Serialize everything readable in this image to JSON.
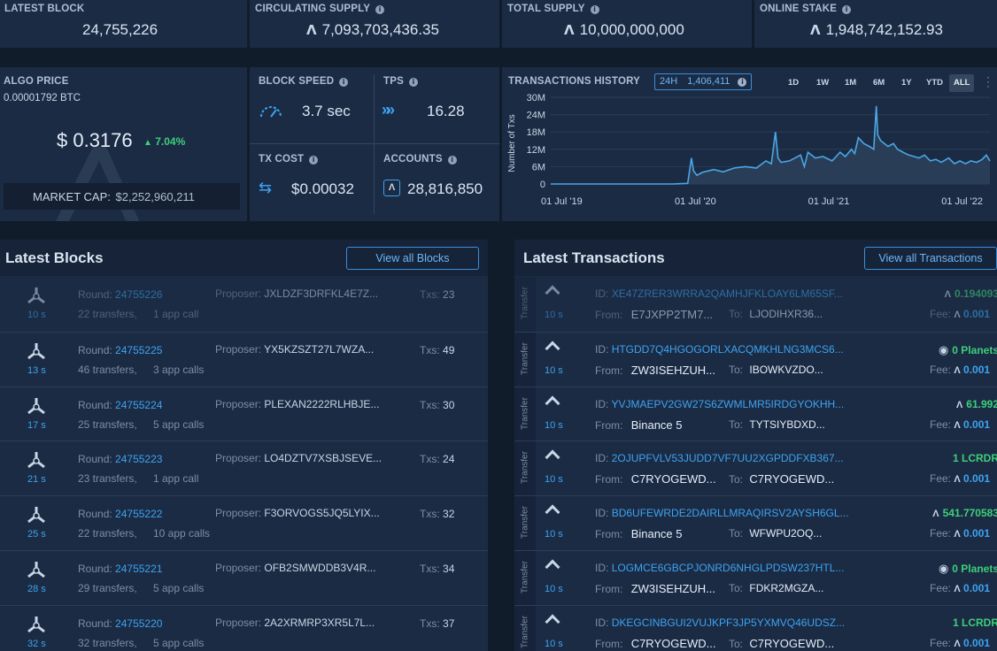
{
  "stats_top": {
    "latest_block": {
      "label": "LATEST BLOCK",
      "value": "24,755,226"
    },
    "circulating_supply": {
      "label": "CIRCULATING SUPPLY",
      "value": "7,093,703,436.35"
    },
    "total_supply": {
      "label": "TOTAL SUPPLY",
      "value": "10,000,000,000"
    },
    "online_stake": {
      "label": "ONLINE STAKE",
      "value": "1,948,742,152.93"
    }
  },
  "price": {
    "label": "ALGO PRICE",
    "btc": "0.00001792 BTC",
    "usd": "$ 0.3176",
    "change": "7.04%",
    "market_cap_label": "MARKET CAP:",
    "market_cap_value": "$2,252,960,211"
  },
  "metrics": {
    "block_speed": {
      "label": "BLOCK SPEED",
      "value": "3.7 sec"
    },
    "tps": {
      "label": "TPS",
      "value": "16.28"
    },
    "tx_cost": {
      "label": "TX COST",
      "value": "$0.00032"
    },
    "accounts": {
      "label": "ACCOUNTS",
      "value": "28,816,850"
    }
  },
  "tx_history": {
    "label": "TRANSACTIONS HISTORY",
    "badge_period": "24H",
    "badge_value": "1,406,411",
    "ranges": [
      "1D",
      "1W",
      "1M",
      "6M",
      "1Y",
      "YTD",
      "ALL"
    ],
    "active_range": "ALL"
  },
  "chart_data": {
    "type": "area",
    "title": "",
    "xlabel": "",
    "ylabel": "Number of Txs",
    "x_ticks": [
      "01 Jul '19",
      "01 Jul '20",
      "01 Jul '21",
      "01 Jul '22"
    ],
    "y_ticks": [
      "0",
      "6M",
      "12M",
      "18M",
      "24M",
      "30M"
    ],
    "ylim": [
      0,
      30000000
    ],
    "xlim": [
      "2019-06-01",
      "2022-09-15"
    ],
    "grid": true,
    "color": "#4aa6e6",
    "series": [
      {
        "x": [
          "2019-06-01",
          "2019-09-01",
          "2019-12-01",
          "2020-03-01",
          "2020-05-01",
          "2020-06-10",
          "2020-06-20",
          "2020-06-26",
          "2020-07-05",
          "2020-07-20",
          "2020-08-20",
          "2020-09-15",
          "2020-10-15",
          "2020-11-15",
          "2020-12-15",
          "2021-01-10",
          "2021-01-25",
          "2021-02-05",
          "2021-02-12",
          "2021-02-20",
          "2021-03-15",
          "2021-04-15",
          "2021-04-25",
          "2021-05-05",
          "2021-05-25",
          "2021-06-15",
          "2021-07-10",
          "2021-08-01",
          "2021-08-15",
          "2021-09-01",
          "2021-09-10",
          "2021-09-20",
          "2021-10-05",
          "2021-10-20",
          "2021-11-01",
          "2021-11-08",
          "2021-11-12",
          "2021-11-20",
          "2021-12-10",
          "2021-12-25",
          "2022-01-05",
          "2022-01-20",
          "2022-02-05",
          "2022-02-20",
          "2022-03-05",
          "2022-03-20",
          "2022-04-05",
          "2022-04-20",
          "2022-05-05",
          "2022-05-25",
          "2022-06-10",
          "2022-06-25",
          "2022-07-10",
          "2022-07-25",
          "2022-08-10",
          "2022-08-25",
          "2022-09-05",
          "2022-09-15"
        ],
        "y": [
          0,
          0,
          0,
          0,
          0,
          200000,
          9000000,
          4500000,
          3000000,
          4000000,
          5000000,
          4200000,
          5500000,
          6000000,
          5500000,
          8000000,
          7000000,
          18000000,
          9000000,
          7500000,
          8000000,
          10000000,
          6000000,
          11000000,
          9000000,
          9500000,
          8000000,
          11000000,
          9500000,
          12000000,
          10500000,
          16000000,
          14000000,
          13000000,
          12000000,
          27000000,
          17000000,
          15000000,
          13000000,
          14000000,
          12000000,
          11000000,
          10000000,
          9500000,
          9000000,
          10000000,
          8000000,
          8500000,
          7500000,
          9000000,
          7000000,
          8000000,
          7000000,
          8000000,
          7500000,
          8500000,
          10000000,
          8000000
        ]
      }
    ]
  },
  "latest_blocks": {
    "title": "Latest Blocks",
    "view_all": "View all Blocks",
    "round_label": "Round:",
    "proposer_label": "Proposer:",
    "txs_label": "Txs:",
    "rows": [
      {
        "age": "10 s",
        "round": "24755226",
        "proposer": "JXLDZF3DRFKL4E7Z...",
        "txs": "23",
        "transfers": "22 transfers,",
        "calls": "1 app call",
        "faded": true
      },
      {
        "age": "13 s",
        "round": "24755225",
        "proposer": "YX5KZSZT27L7WZA...",
        "txs": "49",
        "transfers": "46 transfers,",
        "calls": "3 app calls"
      },
      {
        "age": "17 s",
        "round": "24755224",
        "proposer": "PLEXAN2222RLHBJE...",
        "txs": "30",
        "transfers": "25 transfers,",
        "calls": "5 app calls"
      },
      {
        "age": "21 s",
        "round": "24755223",
        "proposer": "LO4DZTV7XSBJSEVE...",
        "txs": "24",
        "transfers": "23 transfers,",
        "calls": "1 app call"
      },
      {
        "age": "25 s",
        "round": "24755222",
        "proposer": "F3ORVOGS5JQ5LYIX...",
        "txs": "32",
        "transfers": "22 transfers,",
        "calls": "10 app calls"
      },
      {
        "age": "28 s",
        "round": "24755221",
        "proposer": "OFB2SMWDDB3V4R...",
        "txs": "34",
        "transfers": "29 transfers,",
        "calls": "5 app calls"
      },
      {
        "age": "32 s",
        "round": "24755220",
        "proposer": "2A2XRMRP3XR5L7L...",
        "txs": "37",
        "transfers": "32 transfers,",
        "calls": "5 app calls"
      }
    ]
  },
  "latest_transactions": {
    "title": "Latest Transactions",
    "view_all": "View all Transactions",
    "id_label": "ID:",
    "from_label": "From:",
    "to_label": "To:",
    "fee_label": "Fee:",
    "type_label": "Transfer",
    "rows": [
      {
        "age": "10 s",
        "id": "XE47ZRER3WRRA2QAMHJFKLOAY6LM65SF...",
        "from": "E7JXPP2TM7...",
        "to": "LJODIHXR36...",
        "amount": "0.194093",
        "amount_kind": "algo",
        "fee": "0.001",
        "faded": true
      },
      {
        "age": "10 s",
        "id": "HTGDD7Q4HGOGORLXACQMKHLNG3MCS6...",
        "from": "ZW3ISEHZUH...",
        "to": "IBOWKVZDO...",
        "amount": "0 Planets",
        "amount_kind": "asset",
        "fee": "0.001"
      },
      {
        "age": "10 s",
        "id": "YVJMAEPV2GW27S6ZWMLMR5IRDGYOKHH...",
        "from": "Binance 5",
        "to": "TYTSIYBDXD...",
        "amount": "61.992",
        "amount_kind": "algo",
        "fee": "0.001"
      },
      {
        "age": "10 s",
        "id": "2OJUPFVLV53JUDD7VF7UU2XGPDDFXB367...",
        "from": "C7RYOGEWD...",
        "to": "C7RYOGEWD...",
        "amount": "1 LCRDR",
        "amount_kind": "token",
        "fee": "0.001"
      },
      {
        "age": "10 s",
        "id": "BD6UFEWRDE2DAIRLLMRAQIRSV2AYSH6GL...",
        "from": "Binance 5",
        "to": "WFWPU2OQ...",
        "amount": "541.770583",
        "amount_kind": "algo",
        "fee": "0.001"
      },
      {
        "age": "10 s",
        "id": "LOGMCE6GBCPJONRD6NHGLPDSW237HTL...",
        "from": "ZW3ISEHZUH...",
        "to": "FDKR2MGZA...",
        "amount": "0 Planets",
        "amount_kind": "asset",
        "fee": "0.001"
      },
      {
        "age": "10 s",
        "id": "DKEGCINBGUI2VUJKPF3JP5YXMVQ46UDSZ...",
        "from": "C7RYOGEWD...",
        "to": "C7RYOGEWD...",
        "amount": "1 LCRDR",
        "amount_kind": "token",
        "fee": "0.001"
      }
    ]
  }
}
